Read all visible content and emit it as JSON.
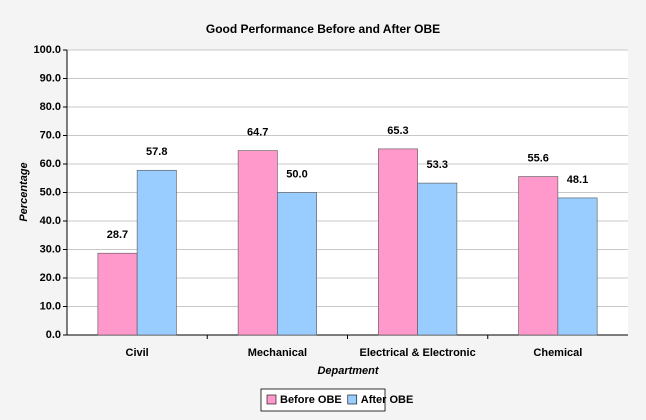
{
  "chart_data": {
    "type": "bar",
    "title": "Good Performance Before and After OBE",
    "x_label": "Department",
    "y_label": "Percentage",
    "categories": [
      "Civil",
      "Mechanical",
      "Electrical & Electronic",
      "Chemical"
    ],
    "series": [
      {
        "name": "Before OBE",
        "color": "#ff99cc",
        "values": [
          28.7,
          64.7,
          65.3,
          55.6
        ]
      },
      {
        "name": "After OBE",
        "color": "#99ccff",
        "values": [
          57.8,
          50.0,
          53.3,
          48.1
        ],
        "value_labels": [
          "57.8",
          "50.0",
          "53.3",
          "48.1"
        ]
      }
    ],
    "ylim": [
      0,
      100
    ],
    "yticks": [
      {
        "value": 0,
        "label": "0.0"
      },
      {
        "value": 10,
        "label": "10.0"
      },
      {
        "value": 20,
        "label": "20.0"
      },
      {
        "value": 30,
        "label": "30.0"
      },
      {
        "value": 40,
        "label": "40.0"
      },
      {
        "value": 50,
        "label": "50.0"
      },
      {
        "value": 60,
        "label": "60.0"
      },
      {
        "value": 70,
        "label": "70.0"
      },
      {
        "value": 80,
        "label": "80.0"
      },
      {
        "value": 90,
        "label": "90.0"
      },
      {
        "value": 100,
        "label": "100.0"
      }
    ],
    "grid": true,
    "legend": "bottom"
  }
}
